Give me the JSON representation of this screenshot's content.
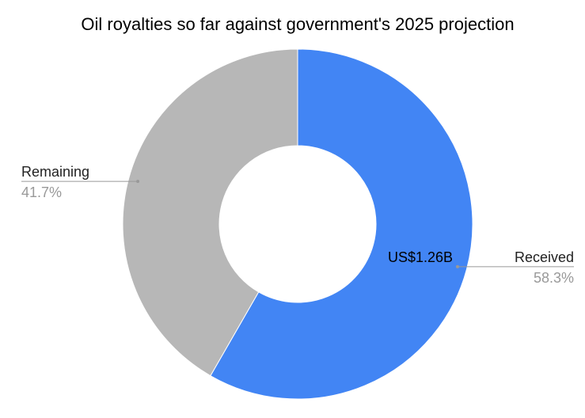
{
  "chart_data": {
    "type": "pie",
    "title": "Oil royalties so far against government's 2025 projection",
    "categories": [
      "Received",
      "Remaining"
    ],
    "values": [
      58.3,
      41.7
    ],
    "value_labels": [
      "58.3%",
      "41.7%"
    ],
    "colors": [
      "#4285f4",
      "#b7b7b7"
    ],
    "annotation": "US$1.26B"
  }
}
